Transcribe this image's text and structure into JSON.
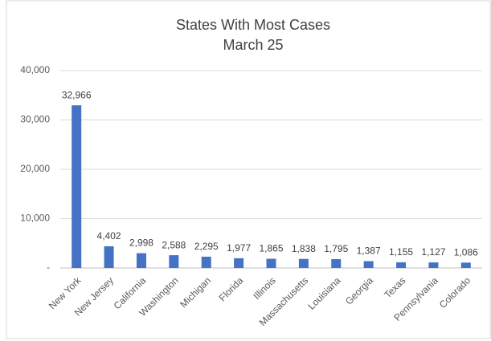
{
  "chart_data": {
    "type": "bar",
    "title": "States With Most Cases",
    "subtitle": "March 25",
    "categories": [
      "New York",
      "New Jersey",
      "California",
      "Washington",
      "Michigan",
      "Florida",
      "Illinois",
      "Massachusetts",
      "Louisiana",
      "Georgia",
      "Texas",
      "Pennsylvania",
      "Colorado"
    ],
    "values": [
      32966,
      4402,
      2998,
      2588,
      2295,
      1977,
      1865,
      1838,
      1795,
      1387,
      1155,
      1127,
      1086
    ],
    "value_labels": [
      "32,966",
      "4,402",
      "2,998",
      "2,588",
      "2,295",
      "1,977",
      "1,865",
      "1,838",
      "1,795",
      "1,387",
      "1,155",
      "1,127",
      "1,086"
    ],
    "color": "#4472c4",
    "ylim": [
      0,
      40000
    ],
    "yticks": [
      {
        "value": 0,
        "label": "-"
      },
      {
        "value": 10000,
        "label": "10,000"
      },
      {
        "value": 20000,
        "label": "20,000"
      },
      {
        "value": 30000,
        "label": "30,000"
      },
      {
        "value": 40000,
        "label": "40,000"
      }
    ],
    "grid": true
  }
}
